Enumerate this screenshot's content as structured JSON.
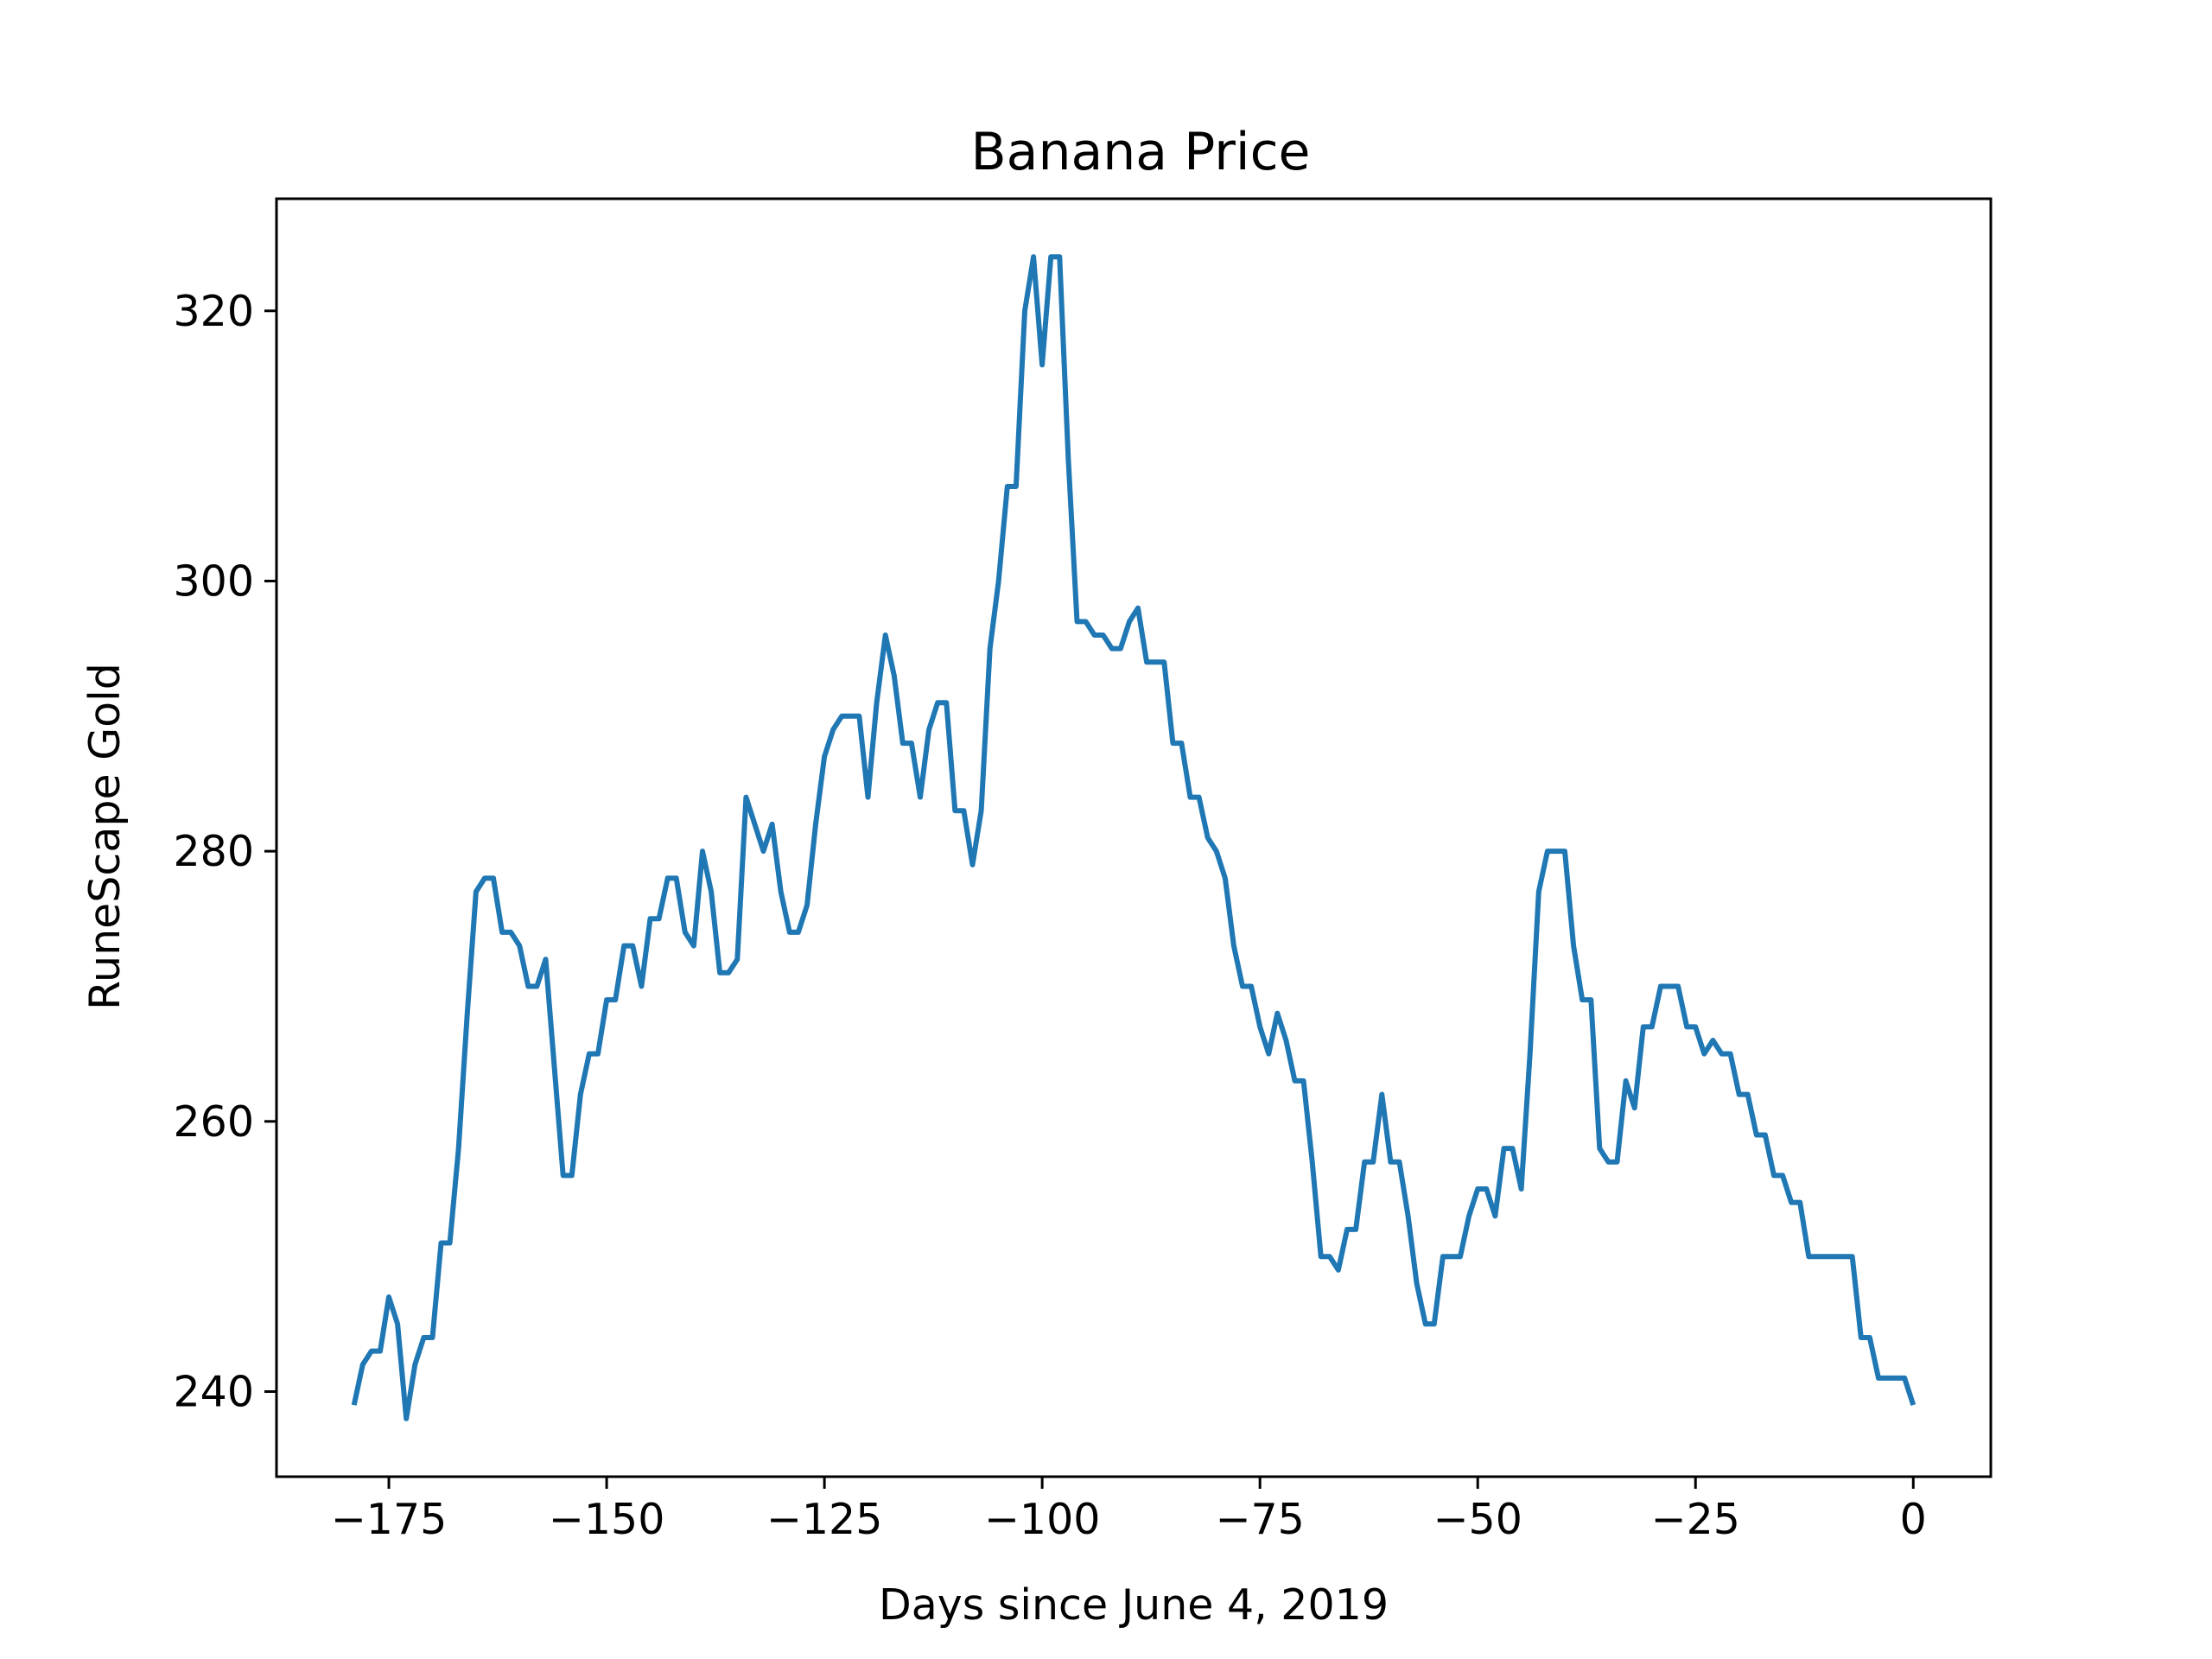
{
  "chart_data": {
    "type": "line",
    "title": "Banana Price",
    "xlabel": "Days since June 4, 2019",
    "ylabel": "RuneScape Gold",
    "xlim": [
      -187.9,
      8.9
    ],
    "ylim": [
      233.7,
      328.3
    ],
    "xticks": [
      -175,
      -150,
      -125,
      -100,
      -75,
      -50,
      -25,
      0
    ],
    "xtick_labels": [
      "−175",
      "−150",
      "−125",
      "−100",
      "−75",
      "−50",
      "−25",
      "0"
    ],
    "yticks": [
      240,
      260,
      280,
      300,
      320
    ],
    "ytick_labels": [
      "240",
      "260",
      "280",
      "300",
      "320"
    ],
    "grid": false,
    "line_color": "#1f77b4",
    "series": [
      {
        "x": [
          -179,
          -178,
          -177,
          -176,
          -175,
          -174,
          -173,
          -172,
          -171,
          -170,
          -169,
          -168,
          -167,
          -166,
          -165,
          -164,
          -163,
          -162,
          -161,
          -160,
          -159,
          -158,
          -157,
          -156,
          -155,
          -154,
          -153,
          -152,
          -151,
          -150,
          -149,
          -148,
          -147,
          -146,
          -145,
          -144,
          -143,
          -142,
          -141,
          -140,
          -139,
          -138,
          -137,
          -136,
          -135,
          -134,
          -133,
          -132,
          -131,
          -130,
          -129,
          -128,
          -127,
          -126,
          -125,
          -124,
          -123,
          -122,
          -121,
          -120,
          -119,
          -118,
          -117,
          -116,
          -115,
          -114,
          -113,
          -112,
          -111,
          -110,
          -109,
          -108,
          -107,
          -106,
          -105,
          -104,
          -103,
          -102,
          -101,
          -100,
          -99,
          -98,
          -97,
          -96,
          -95,
          -94,
          -93,
          -92,
          -91,
          -90,
          -89,
          -88,
          -87,
          -86,
          -85,
          -84,
          -83,
          -82,
          -81,
          -80,
          -79,
          -78,
          -77,
          -76,
          -75,
          -74,
          -73,
          -72,
          -71,
          -70,
          -69,
          -68,
          -67,
          -66,
          -65,
          -64,
          -63,
          -62,
          -61,
          -60,
          -59,
          -58,
          -57,
          -56,
          -55,
          -54,
          -53,
          -52,
          -51,
          -50,
          -49,
          -48,
          -47,
          -46,
          -45,
          -44,
          -43,
          -42,
          -41,
          -40,
          -39,
          -38,
          -37,
          -36,
          -35,
          -34,
          -33,
          -32,
          -31,
          -30,
          -29,
          -28,
          -27,
          -26,
          -25,
          -24,
          -23,
          -22,
          -21,
          -20,
          -19,
          -18,
          -17,
          -16,
          -15,
          -14,
          -13,
          -12,
          -11,
          -10,
          -9,
          -8,
          -7,
          -6,
          -5,
          -4,
          -3,
          -2,
          -1,
          0
        ],
        "y": [
          239,
          242,
          243,
          243,
          247,
          245,
          238,
          242,
          244,
          244,
          251,
          251,
          258,
          268,
          277,
          278,
          278,
          274,
          274,
          273,
          270,
          270,
          272,
          264,
          256,
          256,
          262,
          265,
          265,
          269,
          269,
          273,
          273,
          270,
          275,
          275,
          278,
          278,
          274,
          273,
          280,
          277,
          271,
          271,
          272,
          284,
          282,
          280,
          282,
          277,
          274,
          274,
          276,
          282,
          287,
          289,
          290,
          290,
          290,
          284,
          291,
          296,
          293,
          288,
          288,
          284,
          289,
          291,
          291,
          283,
          283,
          279,
          283,
          295,
          300,
          307,
          307,
          320,
          324,
          316,
          324,
          324,
          309,
          297,
          297,
          296,
          296,
          295,
          295,
          297,
          298,
          294,
          294,
          294,
          288,
          288,
          284,
          284,
          281,
          280,
          278,
          273,
          270,
          270,
          267,
          265,
          268,
          266,
          263,
          263,
          257,
          250,
          250,
          249,
          252,
          252,
          257,
          257,
          262,
          257,
          257,
          253,
          248,
          245,
          245,
          250,
          250,
          250,
          253,
          255,
          255,
          253,
          258,
          258,
          255,
          265,
          277,
          280,
          280,
          280,
          273,
          269,
          269,
          258,
          257,
          257,
          263,
          261,
          267,
          267,
          270,
          270,
          270,
          267,
          267,
          265,
          266,
          265,
          265,
          262,
          262,
          259,
          259,
          256,
          256,
          254,
          254,
          250,
          250,
          250,
          250,
          250,
          250,
          244,
          244,
          241,
          241,
          241,
          241,
          239
        ]
      }
    ]
  }
}
